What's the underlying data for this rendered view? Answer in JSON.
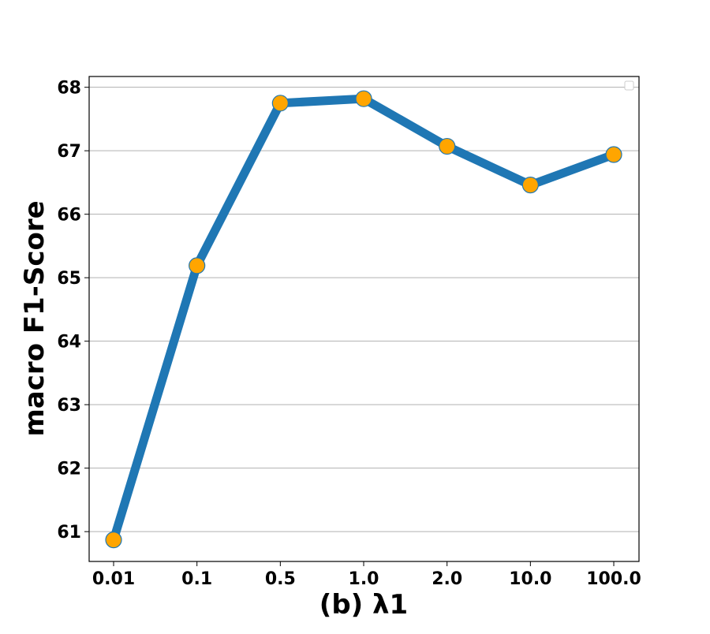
{
  "chart_data": {
    "type": "line",
    "categories": [
      "0.01",
      "0.1",
      "0.5",
      "1.0",
      "2.0",
      "10.0",
      "100.0"
    ],
    "series": [
      {
        "values": [
          60.87,
          65.19,
          67.75,
          67.82,
          67.07,
          66.46,
          66.94
        ]
      }
    ],
    "xlabel": "(b) λ1",
    "ylabel": "macro F1-Score",
    "ylim": [
      60.53,
      68.17
    ],
    "yticks": [
      61,
      62,
      63,
      64,
      65,
      66,
      67,
      68
    ],
    "grid": "horizontal",
    "legend": "top-right, empty",
    "colors": {
      "line": "#1f77b4",
      "marker_fill": "#ffa500",
      "marker_edge": "#1f77b4",
      "grid": "#b0b0b0"
    }
  }
}
